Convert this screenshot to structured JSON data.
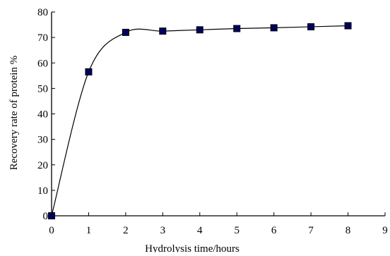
{
  "chart_data": {
    "type": "line",
    "title": "",
    "xlabel": "Hydrolysis time/hours",
    "ylabel": "Recovery rate of protein %",
    "xlim": [
      0,
      9
    ],
    "ylim": [
      0,
      80
    ],
    "x_ticks": [
      0,
      1,
      2,
      3,
      4,
      5,
      6,
      7,
      8,
      9
    ],
    "y_ticks": [
      0,
      10,
      20,
      30,
      40,
      50,
      60,
      70,
      80
    ],
    "grid": false,
    "legend": "none",
    "smooth": true,
    "marker": "square",
    "series": [
      {
        "x": [
          0,
          1,
          2,
          3,
          4,
          5,
          6,
          7,
          8
        ],
        "y": [
          0,
          56.5,
          72,
          72.5,
          73,
          73.5,
          73.8,
          74.2,
          74.6
        ]
      }
    ],
    "colors": {
      "line": "#000000",
      "marker_fill": "#000060",
      "marker_edge": "#000000"
    }
  }
}
